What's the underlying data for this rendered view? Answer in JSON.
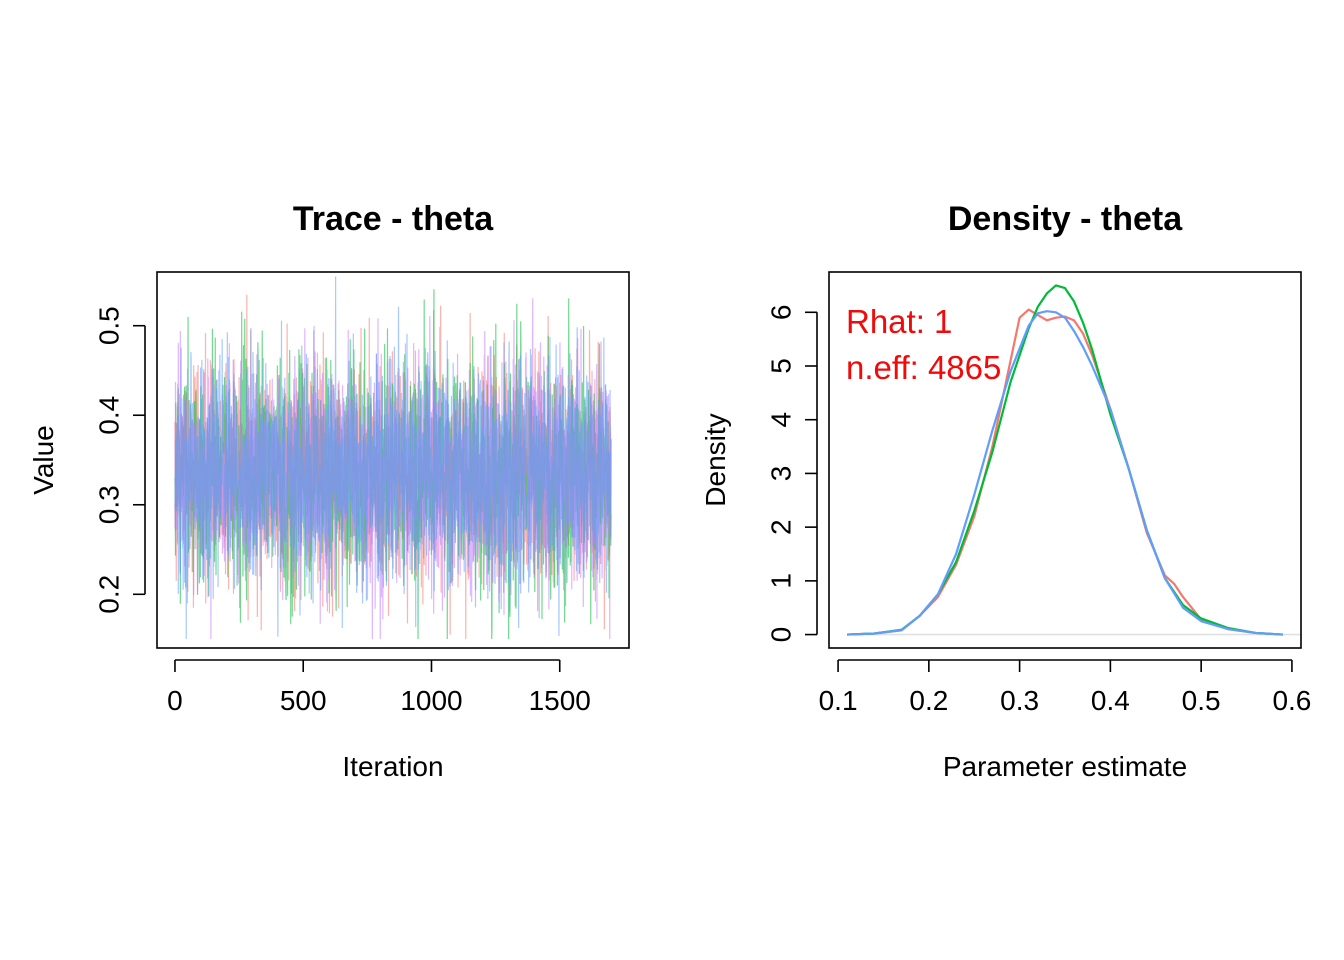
{
  "chart_data": [
    {
      "type": "line",
      "title": "Trace - theta",
      "xlabel": "Iteration",
      "ylabel": "Value",
      "xlim": [
        -70,
        1770
      ],
      "ylim": [
        0.14,
        0.56
      ],
      "xticks": [
        0,
        500,
        1000,
        1500
      ],
      "xtick_labels": [
        "0",
        "500",
        "1000",
        "1500"
      ],
      "yticks": [
        0.2,
        0.3,
        0.4,
        0.5
      ],
      "ytick_labels": [
        "0.2",
        "0.3",
        "0.4",
        "0.5"
      ],
      "grid": false,
      "series": [
        {
          "color": "#f8766d",
          "mean": 0.335,
          "sd": 0.062,
          "x_range": [
            0,
            1700
          ]
        },
        {
          "color": "#00ba38",
          "mean": 0.335,
          "sd": 0.062,
          "x_range": [
            0,
            1700
          ]
        },
        {
          "color": "#c77cff",
          "mean": 0.335,
          "sd": 0.062,
          "x_range": [
            0,
            1700
          ]
        },
        {
          "color": "#619cff",
          "mean": 0.335,
          "sd": 0.062,
          "x_range": [
            0,
            1700
          ]
        }
      ]
    },
    {
      "type": "line",
      "title": "Density - theta",
      "xlabel": "Parameter estimate",
      "ylabel": "Density",
      "xlim": [
        0.09,
        0.61
      ],
      "ylim": [
        -0.25,
        6.75
      ],
      "xticks": [
        0.1,
        0.2,
        0.3,
        0.4,
        0.5,
        0.6
      ],
      "xtick_labels": [
        "0.1",
        "0.2",
        "0.3",
        "0.4",
        "0.5",
        "0.6"
      ],
      "yticks": [
        0,
        1,
        2,
        3,
        4,
        5,
        6
      ],
      "ytick_labels": [
        "0",
        "1",
        "2",
        "3",
        "4",
        "5",
        "6"
      ],
      "grid": false,
      "annotations": [
        "Rhat: 1",
        "n.eff: 4865"
      ],
      "annotation_color": "#f00a0a",
      "baseline_color": "#e0e0e0",
      "series": [
        {
          "color": "#f8766d",
          "x": [
            0.11,
            0.14,
            0.17,
            0.19,
            0.21,
            0.23,
            0.25,
            0.27,
            0.29,
            0.3,
            0.31,
            0.32,
            0.33,
            0.34,
            0.35,
            0.36,
            0.37,
            0.38,
            0.39,
            0.4,
            0.42,
            0.44,
            0.46,
            0.47,
            0.48,
            0.5,
            0.53,
            0.56,
            0.59
          ],
          "y": [
            0.0,
            0.02,
            0.08,
            0.35,
            0.7,
            1.3,
            2.2,
            3.5,
            5.1,
            5.9,
            6.05,
            5.95,
            5.85,
            5.9,
            5.92,
            5.85,
            5.6,
            5.2,
            4.7,
            4.2,
            3.1,
            1.9,
            1.1,
            0.95,
            0.7,
            0.28,
            0.1,
            0.03,
            0.0
          ]
        },
        {
          "color": "#00ba38",
          "x": [
            0.11,
            0.14,
            0.17,
            0.19,
            0.21,
            0.23,
            0.25,
            0.27,
            0.29,
            0.31,
            0.32,
            0.33,
            0.34,
            0.35,
            0.36,
            0.37,
            0.38,
            0.4,
            0.42,
            0.44,
            0.46,
            0.48,
            0.5,
            0.53,
            0.56,
            0.59
          ],
          "y": [
            0.0,
            0.02,
            0.09,
            0.35,
            0.75,
            1.35,
            2.3,
            3.4,
            4.7,
            5.7,
            6.1,
            6.35,
            6.5,
            6.45,
            6.2,
            5.8,
            5.3,
            4.1,
            3.1,
            1.95,
            1.05,
            0.55,
            0.3,
            0.12,
            0.03,
            0.0
          ]
        },
        {
          "color": "#619cff",
          "x": [
            0.11,
            0.14,
            0.17,
            0.19,
            0.21,
            0.23,
            0.25,
            0.27,
            0.29,
            0.31,
            0.32,
            0.33,
            0.34,
            0.35,
            0.36,
            0.37,
            0.38,
            0.4,
            0.42,
            0.44,
            0.46,
            0.48,
            0.5,
            0.53,
            0.56,
            0.59
          ],
          "y": [
            0.0,
            0.02,
            0.08,
            0.35,
            0.75,
            1.5,
            2.6,
            3.8,
            4.9,
            5.75,
            5.98,
            6.02,
            6.0,
            5.9,
            5.65,
            5.35,
            5.0,
            4.2,
            3.1,
            1.95,
            1.05,
            0.5,
            0.25,
            0.1,
            0.03,
            0.0
          ]
        }
      ]
    }
  ]
}
